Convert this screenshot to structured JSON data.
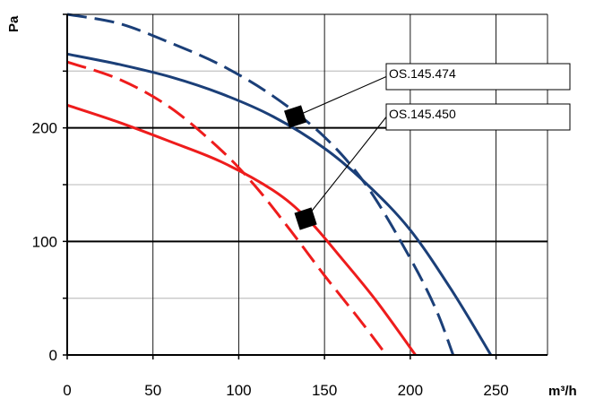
{
  "chart_data": {
    "type": "line",
    "ylabel": "Pa",
    "xlabel": "m³/h",
    "xlim": [
      0,
      280
    ],
    "ylim": [
      0,
      300
    ],
    "x_ticks": [
      0,
      50,
      100,
      150,
      200,
      250
    ],
    "y_ticks": [
      0,
      100,
      200
    ],
    "y_minor_ticks": [
      50,
      150,
      250
    ],
    "grid": true,
    "colors": {
      "blue": "#1b3f78",
      "red": "#ee1c1c"
    },
    "series": [
      {
        "color": "blue",
        "style": "solid",
        "points": [
          [
            0,
            265
          ],
          [
            30,
            256
          ],
          [
            60,
            245
          ],
          [
            90,
            230
          ],
          [
            120,
            210
          ],
          [
            150,
            182
          ],
          [
            175,
            150
          ],
          [
            200,
            110
          ],
          [
            225,
            55
          ],
          [
            247,
            0
          ]
        ]
      },
      {
        "color": "blue",
        "style": "dashed",
        "points": [
          [
            0,
            300
          ],
          [
            30,
            292
          ],
          [
            60,
            275
          ],
          [
            90,
            255
          ],
          [
            120,
            228
          ],
          [
            150,
            192
          ],
          [
            175,
            148
          ],
          [
            200,
            85
          ],
          [
            215,
            40
          ],
          [
            225,
            0
          ]
        ]
      },
      {
        "color": "red",
        "style": "solid",
        "points": [
          [
            0,
            220
          ],
          [
            30,
            205
          ],
          [
            60,
            188
          ],
          [
            90,
            170
          ],
          [
            120,
            145
          ],
          [
            140,
            120
          ],
          [
            160,
            85
          ],
          [
            180,
            48
          ],
          [
            203,
            0
          ]
        ]
      },
      {
        "color": "red",
        "style": "dashed",
        "points": [
          [
            0,
            258
          ],
          [
            30,
            243
          ],
          [
            60,
            218
          ],
          [
            90,
            180
          ],
          [
            110,
            148
          ],
          [
            130,
            110
          ],
          [
            150,
            70
          ],
          [
            170,
            32
          ],
          [
            186,
            0
          ]
        ]
      }
    ],
    "annotations": [
      {
        "label": "OS.145.474",
        "point": [
          133,
          210
        ]
      },
      {
        "label": "OS.145.450",
        "point": [
          139,
          120
        ]
      }
    ]
  }
}
